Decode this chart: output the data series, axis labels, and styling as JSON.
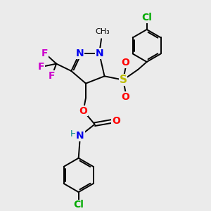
{
  "background_color": "#ebebeb",
  "bond_color": "#000000",
  "atom_colors": {
    "N": "#0000ee",
    "O": "#ff0000",
    "F": "#cc00cc",
    "S": "#bbbb00",
    "Cl": "#00aa00",
    "H": "#008888",
    "C": "#000000"
  },
  "figsize": [
    3.0,
    3.0
  ],
  "dpi": 100
}
